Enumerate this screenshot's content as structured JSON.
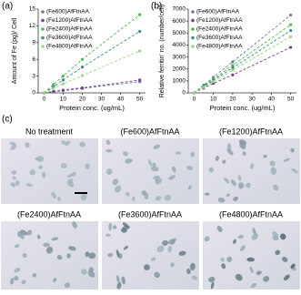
{
  "chart_data": [
    {
      "type": "line",
      "dashed": true,
      "y_label": "Amount of Fe (pg)/ Cell",
      "x_label": "Protein conc. (ug/mL)",
      "x": [
        0,
        5,
        10,
        20,
        50
      ],
      "xlim": [
        -3,
        53
      ],
      "xticks": [
        0,
        10,
        20,
        30,
        40,
        50
      ],
      "ylim": [
        0,
        15
      ],
      "yticks": [
        0,
        3,
        6,
        9,
        12,
        15
      ],
      "legend": "upper left",
      "series": [
        {
          "name": "(Fe600)AfFtnAA",
          "color": "#6a7d99",
          "values": [
            0,
            0.2,
            0.4,
            0.8,
            2.0
          ]
        },
        {
          "name": "(Fe1200)AfFtnAA",
          "color": "#7a3d8c",
          "values": [
            0,
            0.25,
            0.5,
            0.9,
            2.3
          ]
        },
        {
          "name": "(Fe2400)AfFtnAA",
          "color": "#4fb84f",
          "values": [
            0,
            1.5,
            3.0,
            6.0,
            14.0
          ]
        },
        {
          "name": "(Fe3600)AfFtnAA",
          "color": "#3a8f86",
          "values": [
            0,
            1.1,
            2.3,
            4.6,
            11.0
          ]
        },
        {
          "name": "(Fe4800)AfFtnAA",
          "color": "#9fd68a",
          "values": [
            0,
            0.8,
            1.6,
            3.1,
            7.5
          ]
        }
      ]
    },
    {
      "type": "line",
      "dashed": true,
      "y_label": "Relative ferritin' no. (number/cell)",
      "x_label": "Protein conc. (ug/mL)",
      "x": [
        0,
        5,
        10,
        20,
        50
      ],
      "xlim": [
        -3,
        53
      ],
      "xticks": [
        0,
        10,
        20,
        30,
        40,
        50
      ],
      "ylim": [
        0,
        7000
      ],
      "yticks": [
        0,
        1000,
        2000,
        3000,
        4000,
        5000,
        6000,
        7000
      ],
      "legend": "upper left",
      "series": [
        {
          "name": "(Fe600)AfFtnAA",
          "color": "#6a7d99",
          "values": [
            0,
            650,
            1300,
            2600,
            6500
          ]
        },
        {
          "name": "(Fe1200)AfFtnAA",
          "color": "#7a3d8c",
          "values": [
            0,
            400,
            800,
            1500,
            3800
          ]
        },
        {
          "name": "(Fe2400)AfFtnAA",
          "color": "#4fb84f",
          "values": [
            0,
            580,
            1150,
            2300,
            5700
          ]
        },
        {
          "name": "(Fe3600)AfFtnAA",
          "color": "#3a8f86",
          "values": [
            0,
            520,
            1050,
            2100,
            5200
          ]
        },
        {
          "name": "(Fe4800)AfFtnAA",
          "color": "#9fd68a",
          "values": [
            0,
            470,
            950,
            1900,
            4700
          ]
        }
      ]
    }
  ],
  "figure": {
    "panel_labels": [
      "(a)",
      "(b)",
      "(c)"
    ],
    "images": [
      "No treatment",
      "(Fe600)AfFtnAA",
      "(Fe1200)AfFtnAA",
      "(Fe2400)AfFtnAA",
      "(Fe3600)AfFtnAA",
      "(Fe4800)AfFtnAA"
    ]
  }
}
